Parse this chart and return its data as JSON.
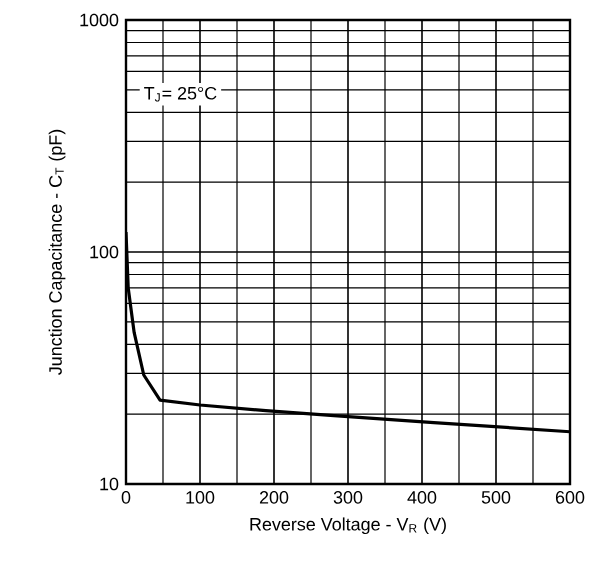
{
  "chart_data": {
    "type": "line",
    "xlabel": "Reverse Voltage - V$_{R}$ (V)",
    "ylabel": "Junction Capacitance - C$_{T}$ (pF)",
    "annotations": [
      "T$_{J}$= 25°C"
    ],
    "x": [
      0,
      3,
      11,
      24,
      46,
      100,
      189,
      281,
      416,
      600
    ],
    "values": [
      122,
      70,
      45,
      29.5,
      23,
      21.9,
      20.7,
      19.7,
      18.4,
      16.8
    ],
    "color": "#000000",
    "log": "y",
    "grid": true,
    "marker": "none",
    "line_style": "solid",
    "xlim": [
      0,
      600
    ],
    "xticks": [
      0,
      100,
      200,
      300,
      400,
      500,
      600
    ],
    "ylim": [
      10,
      1000
    ],
    "yticks": [
      10,
      100,
      1000
    ]
  }
}
